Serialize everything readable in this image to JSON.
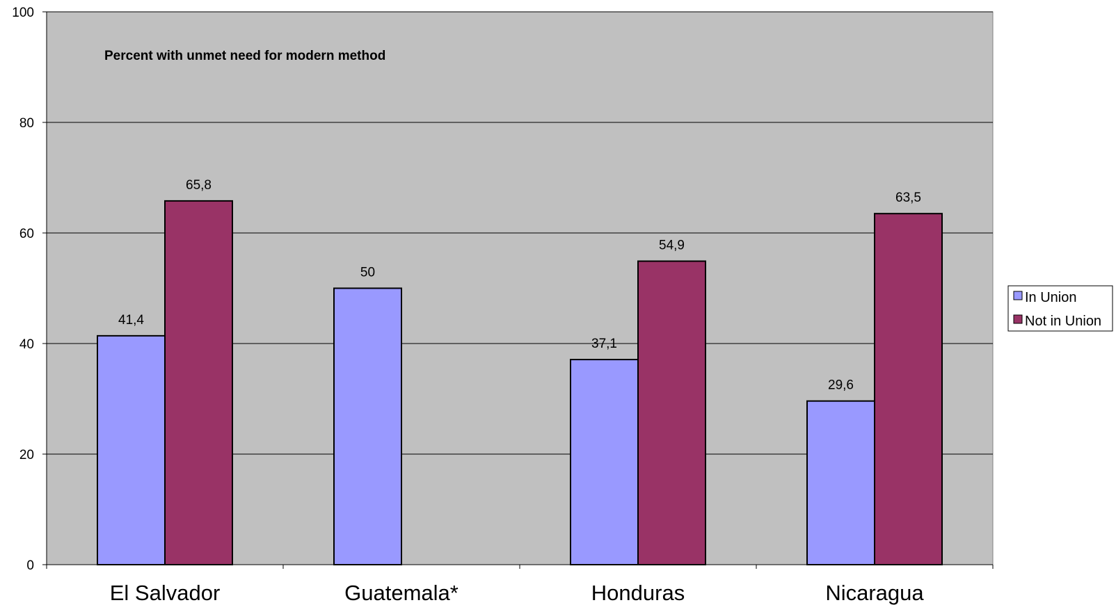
{
  "chart_data": {
    "type": "bar",
    "title": "Percent with unmet need for modern method",
    "categories": [
      "El Salvador",
      "Guatemala*",
      "Honduras",
      "Nicaragua"
    ],
    "series": [
      {
        "name": "In Union",
        "color": "#9999ff",
        "values": [
          41.4,
          50,
          37.1,
          29.6
        ],
        "labels": [
          "41,4",
          "50",
          "37,1",
          "29,6"
        ]
      },
      {
        "name": "Not in Union",
        "color": "#993366",
        "values": [
          65.8,
          null,
          54.9,
          63.5
        ],
        "labels": [
          "65,8",
          "",
          "54,9",
          "63,5"
        ]
      }
    ],
    "ylim": [
      0,
      100
    ],
    "yticks": [
      0,
      20,
      40,
      60,
      80,
      100
    ],
    "grid": true,
    "plot_background": "#c0c0c0",
    "legend_position": "right"
  }
}
